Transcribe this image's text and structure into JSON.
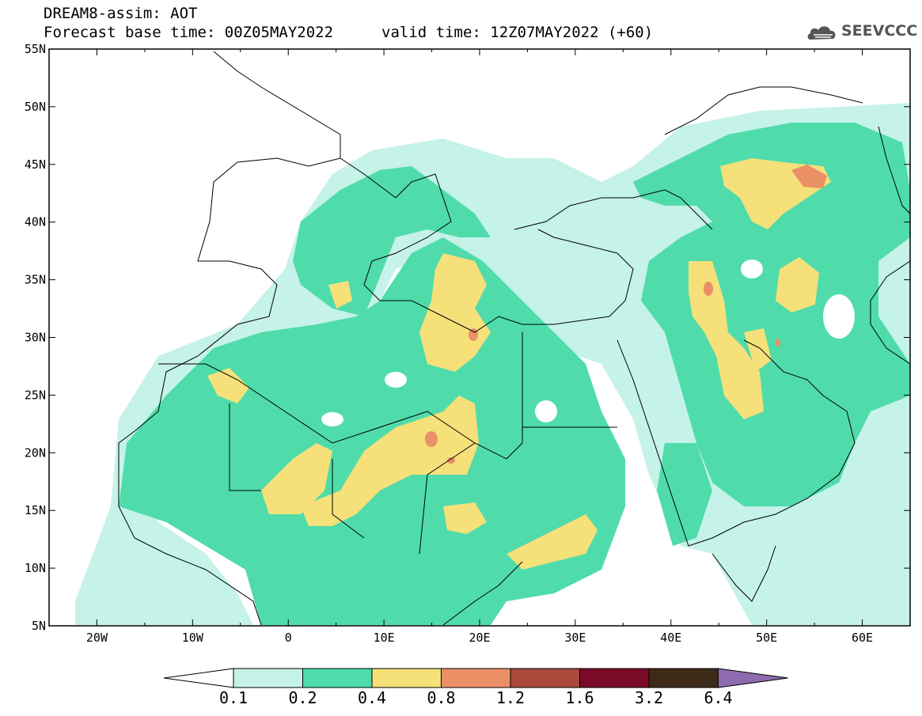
{
  "header": {
    "line1": "DREAM8-assim: AOT",
    "line2": "Forecast base time: 00Z05MAY2022",
    "valid": "valid time: 12Z07MAY2022 (+60)"
  },
  "logo": {
    "text": "SEEVCCC",
    "icon": "cloud-icon"
  },
  "map": {
    "lon_ticks": [
      "20W",
      "10W",
      "0",
      "10E",
      "20E",
      "30E",
      "40E",
      "50E",
      "60E"
    ],
    "lat_ticks": [
      "55N",
      "50N",
      "45N",
      "40N",
      "35N",
      "30N",
      "25N",
      "20N",
      "15N",
      "10N",
      "5N"
    ],
    "lon_range": [
      -25,
      65
    ],
    "lat_range": [
      5,
      55
    ]
  },
  "colorbar": {
    "labels": [
      "0.1",
      "0.2",
      "0.4",
      "0.8",
      "1.2",
      "1.6",
      "3.2",
      "6.4"
    ],
    "colors": [
      "#ffffff",
      "#c5f2e9",
      "#4fdcaa",
      "#f5e07a",
      "#eb8f67",
      "#a94a3b",
      "#7a0b28",
      "#3e2b17",
      "#8e6bb0"
    ]
  }
}
